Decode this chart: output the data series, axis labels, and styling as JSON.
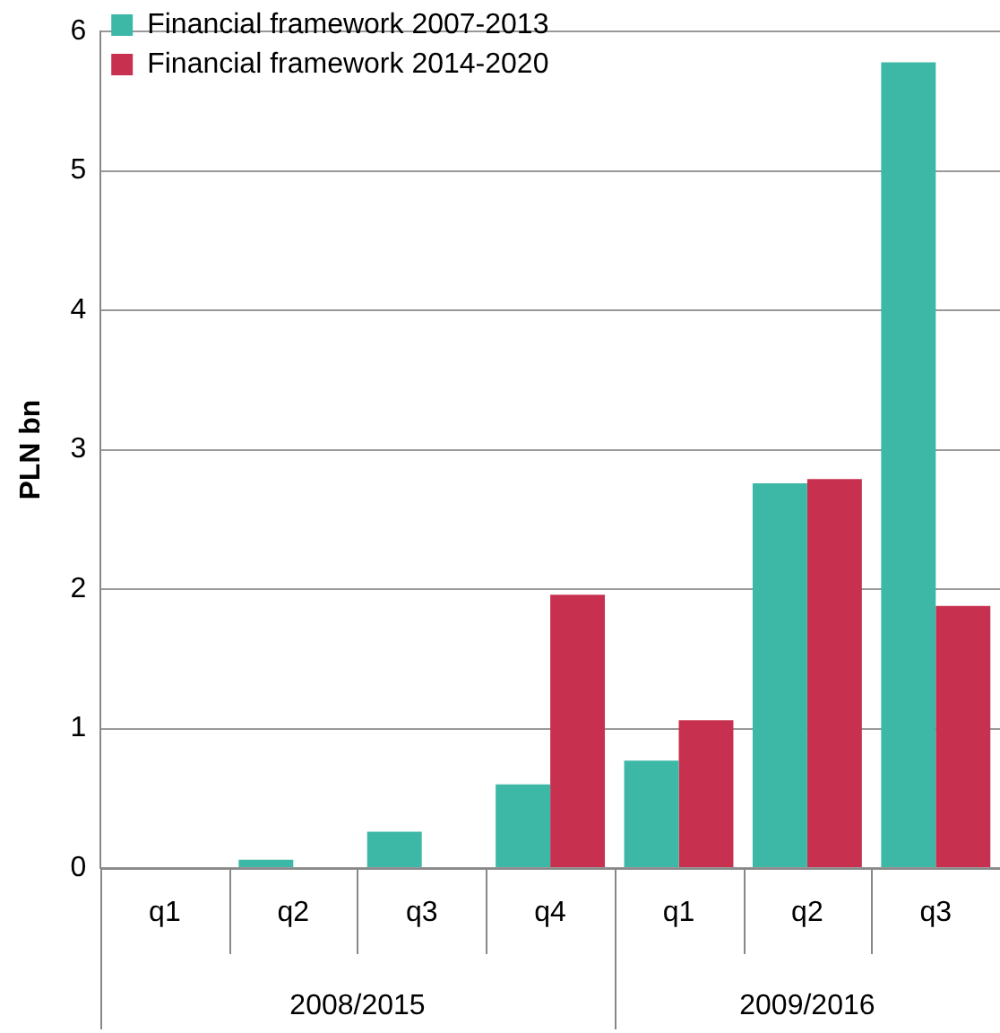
{
  "chart_data": {
    "type": "bar",
    "ylabel": "PLN bn",
    "categories": [
      "q1",
      "q2",
      "q3",
      "q4",
      "q1",
      "q2",
      "q3"
    ],
    "series": [
      {
        "name": "Financial framework 2007-2013",
        "color": "#3db8a6",
        "values": [
          0,
          0.06,
          0.26,
          0.6,
          0.77,
          2.76,
          5.78
        ]
      },
      {
        "name": "Financial framework 2014-2020",
        "color": "#c8304f",
        "values": [
          0,
          0,
          0,
          1.96,
          1.06,
          2.79,
          1.88
        ]
      }
    ],
    "ylim": [
      0,
      6
    ],
    "yticks": [
      0,
      1,
      2,
      3,
      4,
      5,
      6
    ],
    "grid": "y",
    "legend": "top left",
    "annotations": [
      "2008/2015",
      "2009/2016"
    ]
  }
}
